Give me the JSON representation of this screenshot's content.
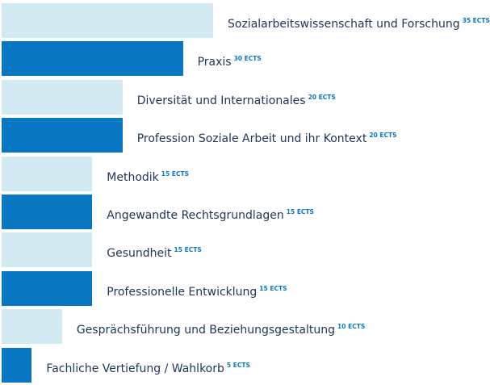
{
  "chart_data": {
    "type": "bar",
    "orientation": "horizontal",
    "unit": "ECTS",
    "categories": [
      "Sozialarbeitswissenschaft und Forschung",
      "Praxis",
      "Diversität und Internationales",
      "Profession Soziale Arbeit und ihr Kontext",
      "Methodik",
      "Angewandte Rechtsgrundlagen",
      "Gesundheit",
      "Professionelle Entwicklung",
      "Gesprächsführung und Beziehungsgestaltung",
      "Fachliche Vertiefung / Wahlkorb"
    ],
    "values": [
      35,
      30,
      20,
      20,
      15,
      15,
      15,
      15,
      10,
      5
    ],
    "value_labels": [
      "35 ECTS",
      "30 ECTS",
      "20 ECTS",
      "20 ECTS",
      "15 ECTS",
      "15 ECTS",
      "15 ECTS",
      "15 ECTS",
      "10 ECTS",
      "5 ECTS"
    ],
    "colors": [
      "#d4eaf3",
      "#0a77c2"
    ],
    "xlim": [
      0,
      35
    ],
    "grid": false
  }
}
